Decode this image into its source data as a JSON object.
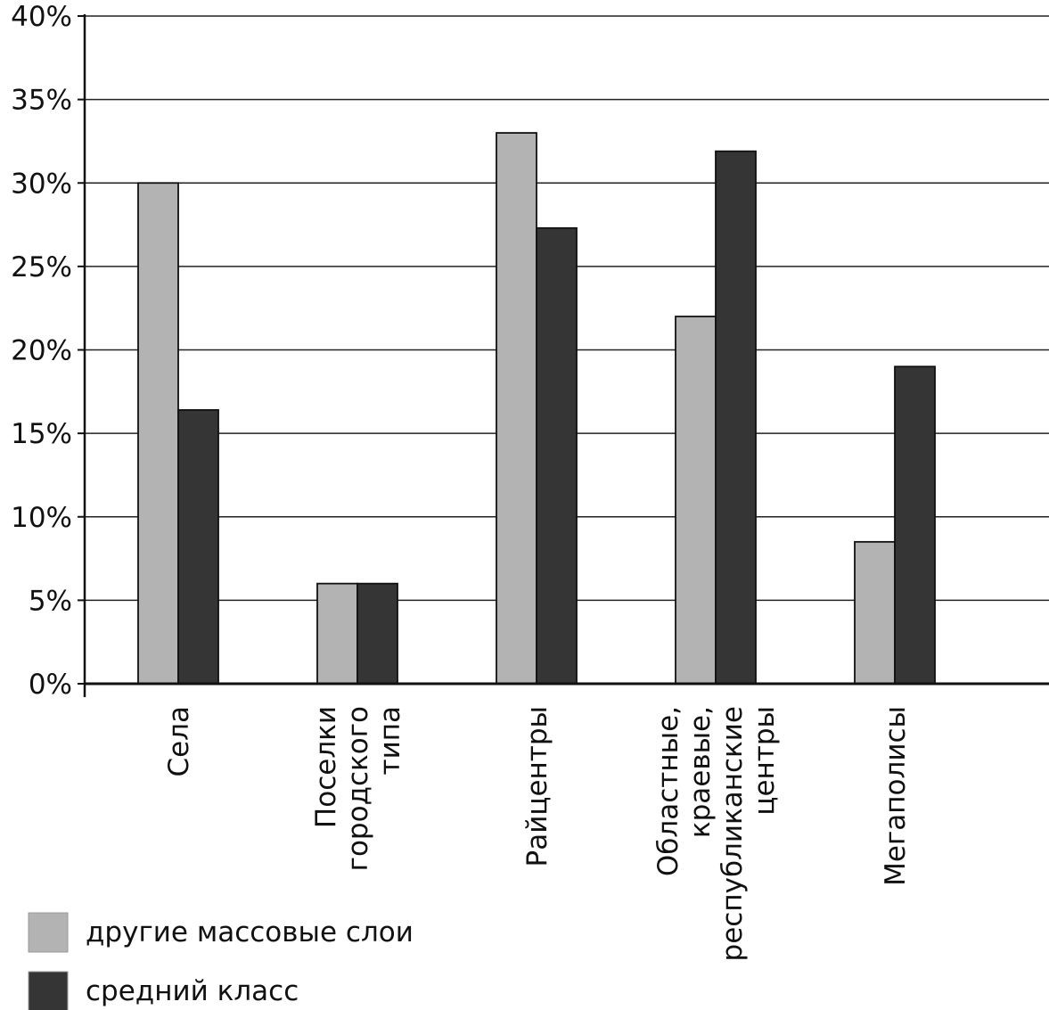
{
  "chart_data": {
    "type": "bar",
    "title": "",
    "xlabel": "",
    "ylabel": "",
    "ylim": [
      0,
      40
    ],
    "y_ticks": [
      "0%",
      "5%",
      "10%",
      "15%",
      "20%",
      "25%",
      "30%",
      "35%",
      "40%"
    ],
    "grid": true,
    "legend_position": "bottom-left",
    "categories": [
      [
        "Села"
      ],
      [
        "Поселки",
        "городского",
        "типа"
      ],
      [
        "Райцентры"
      ],
      [
        "Областные,",
        "краевые,",
        "республиканские",
        "центры"
      ],
      [
        "Мегаполисы"
      ]
    ],
    "series": [
      {
        "name": "другие массовые слои",
        "color": "#b3b3b3",
        "values": [
          30,
          6,
          33,
          22,
          8.5
        ]
      },
      {
        "name": "средний класс",
        "color": "#353535",
        "values": [
          16.4,
          6,
          27.3,
          31.9,
          19
        ]
      }
    ]
  }
}
